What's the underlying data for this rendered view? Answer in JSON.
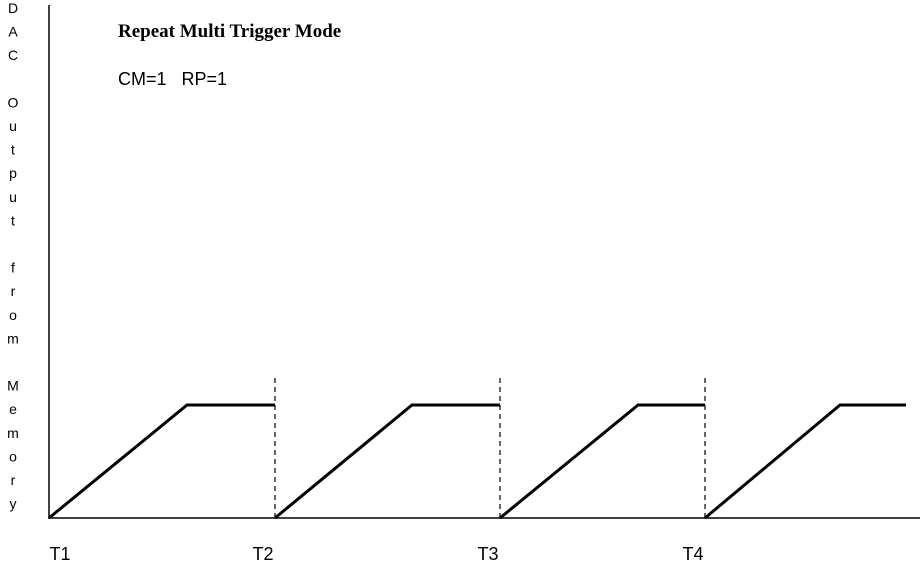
{
  "title": "Repeat Multi Trigger Mode",
  "subtitle": "CM=1   RP=1",
  "y_axis_label": "DAC Output from Memory",
  "time_labels": [
    "T1",
    "T2",
    "T3",
    "T4"
  ]
}
